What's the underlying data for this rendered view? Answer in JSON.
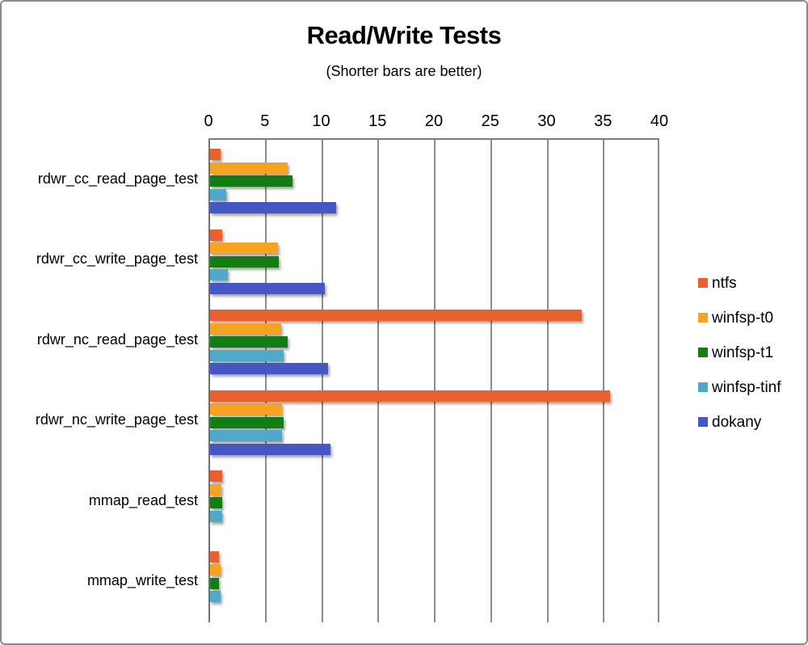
{
  "title": "Read/Write Tests",
  "subtitle": "(Shorter bars are better)",
  "chart_data": {
    "type": "bar",
    "orientation": "horizontal",
    "title": "Read/Write Tests",
    "subtitle": "(Shorter bars are better)",
    "xlabel": "",
    "ylabel": "",
    "xlim": [
      0,
      40
    ],
    "xticks": [
      "0",
      "5",
      "10",
      "15",
      "20",
      "25",
      "30",
      "35",
      "40"
    ],
    "grid": true,
    "legend_position": "right",
    "categories": [
      "rdwr_cc_read_page_test",
      "rdwr_cc_write_page_test",
      "rdwr_nc_read_page_test",
      "rdwr_nc_write_page_test",
      "mmap_read_test",
      "mmap_write_test"
    ],
    "series": [
      {
        "name": "ntfs",
        "color": "#E8612E",
        "values": [
          0.9,
          1.1,
          33.0,
          35.5,
          1.1,
          0.8
        ]
      },
      {
        "name": "winfsp-t0",
        "color": "#F6A322",
        "values": [
          6.9,
          6.0,
          6.3,
          6.4,
          1.0,
          0.9
        ]
      },
      {
        "name": "winfsp-t1",
        "color": "#147C14",
        "values": [
          7.3,
          6.1,
          6.9,
          6.5,
          1.1,
          0.8
        ]
      },
      {
        "name": "winfsp-tinf",
        "color": "#50A9C9",
        "values": [
          1.4,
          1.6,
          6.5,
          6.4,
          1.1,
          0.9
        ]
      },
      {
        "name": "dokany",
        "color": "#4656C4",
        "values": [
          11.2,
          10.2,
          10.5,
          10.7,
          null,
          null
        ]
      }
    ]
  },
  "colors": {
    "gridline": "#8C8C8C",
    "zero_axis": "#6F6F6F",
    "plot_border": "#7D7D7D",
    "frame_border": "#8A8A8A",
    "text": "#000000"
  }
}
